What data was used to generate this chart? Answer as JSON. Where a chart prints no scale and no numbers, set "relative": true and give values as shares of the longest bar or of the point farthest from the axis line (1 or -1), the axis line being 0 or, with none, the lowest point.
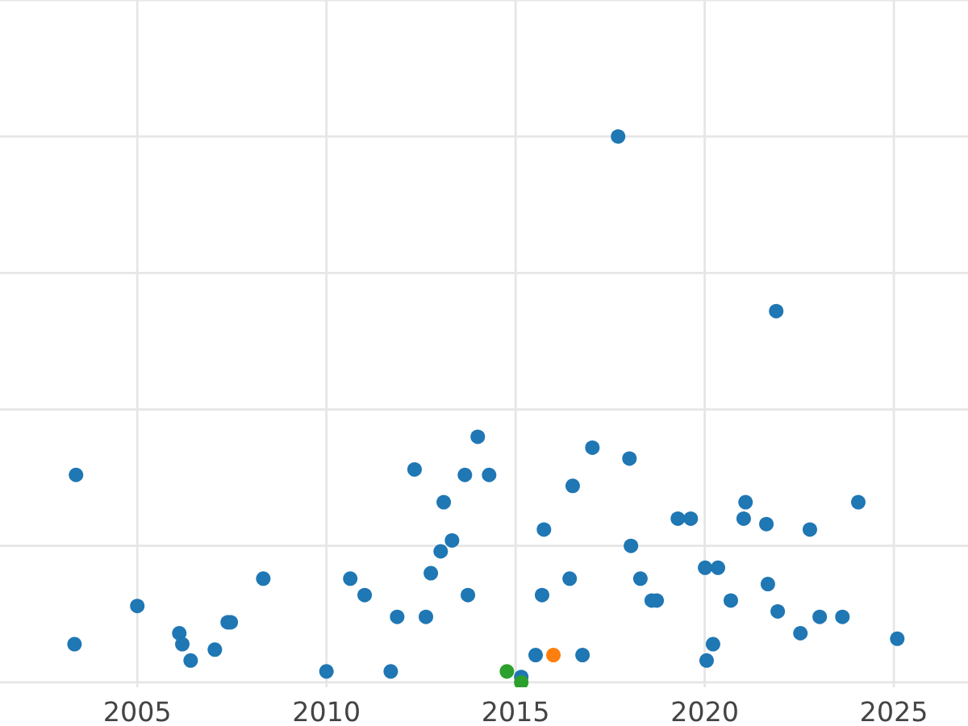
{
  "chart_data": {
    "type": "scatter",
    "relative": true,
    "grid": true,
    "tick_labels": "x",
    "marker": "circle",
    "xlim": [
      2001.37,
      2026.96
    ],
    "xticks": [
      2005,
      2010,
      2015,
      2020,
      2025
    ],
    "series": [
      {
        "color": "#1f77b4",
        "x": [
          2003.38,
          2003.34,
          2005.0,
          2006.11,
          2006.19,
          2006.41,
          2007.05,
          2007.39,
          2007.47,
          2008.33,
          2010.0,
          2010.63,
          2011.01,
          2011.7,
          2011.87,
          2012.33,
          2012.63,
          2012.76,
          2013.02,
          2013.1,
          2013.32,
          2013.66,
          2013.74,
          2014.0,
          2014.3,
          2015.15,
          2015.53,
          2015.7,
          2015.75,
          2016.43,
          2016.51,
          2016.77,
          2017.03,
          2017.71,
          2018.01,
          2018.05,
          2018.3,
          2018.6,
          2018.73,
          2019.29,
          2019.63,
          2020.01,
          2020.05,
          2020.22,
          2020.35,
          2020.69,
          2021.03,
          2021.08,
          2021.63,
          2021.67,
          2021.89,
          2021.93,
          2022.53,
          2022.78,
          2023.04,
          2023.64,
          2024.06,
          2025.09
        ],
        "values": [
          0.38,
          0.07,
          0.14,
          0.09,
          0.07,
          0.04,
          0.06,
          0.11,
          0.11,
          0.19,
          0.02,
          0.19,
          0.16,
          0.02,
          0.12,
          0.39,
          0.12,
          0.2,
          0.24,
          0.33,
          0.26,
          0.38,
          0.16,
          0.45,
          0.38,
          0.01,
          0.05,
          0.16,
          0.28,
          0.19,
          0.36,
          0.05,
          0.43,
          1,
          0.41,
          0.25,
          0.19,
          0.15,
          0.15,
          0.3,
          0.3,
          0.21,
          0.04,
          0.07,
          0.21,
          0.15,
          0.3,
          0.33,
          0.29,
          0.18,
          0.68,
          0.13,
          0.09,
          0.28,
          0.12,
          0.12,
          0.33,
          0.08
        ]
      },
      {
        "color": "#2ca02c",
        "x": [
          2014.77,
          2015.15
        ],
        "values": [
          0.02,
          0
        ]
      },
      {
        "color": "#ff7f0e",
        "x": [
          2016.0
        ],
        "values": [
          0.05
        ]
      }
    ]
  }
}
